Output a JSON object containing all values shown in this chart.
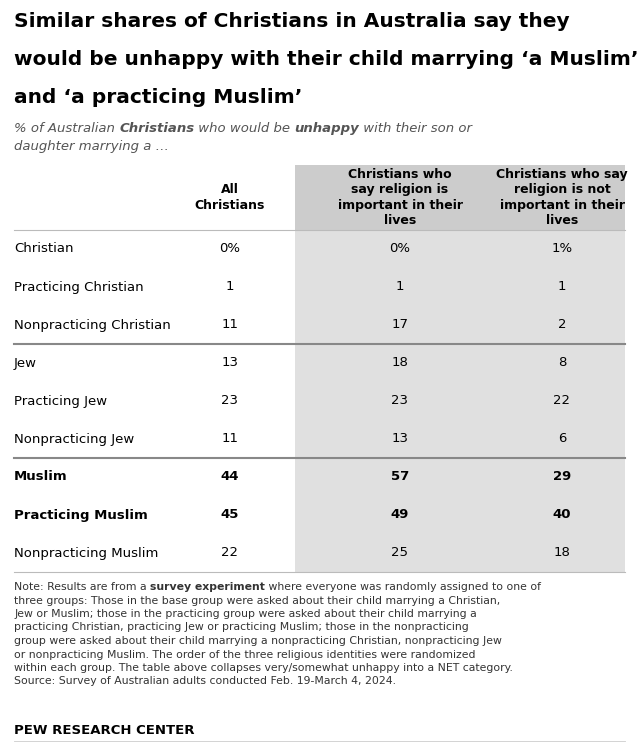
{
  "title_line1": "Similar shares of Christians in Australia say they",
  "title_line2": "would be unhappy with their child marrying ‘a Muslim’",
  "title_line3": "and ‘a practicing Muslim’",
  "col_headers": [
    "All\nChristians",
    "Christians who\nsay religion is\nimportant in their\nlives",
    "Christians who say\nreligion is not\nimportant in their\nlives"
  ],
  "rows": [
    {
      "label": "Christian",
      "val1": "0%",
      "val2": "0%",
      "val3": "1%",
      "group": 0,
      "bold": false
    },
    {
      "label": "Practicing Christian",
      "val1": "1",
      "val2": "1",
      "val3": "1",
      "group": 0,
      "bold": false
    },
    {
      "label": "Nonpracticing Christian",
      "val1": "11",
      "val2": "17",
      "val3": "2",
      "group": 0,
      "bold": false
    },
    {
      "label": "Jew",
      "val1": "13",
      "val2": "18",
      "val3": "8",
      "group": 1,
      "bold": false
    },
    {
      "label": "Practicing Jew",
      "val1": "23",
      "val2": "23",
      "val3": "22",
      "group": 1,
      "bold": false
    },
    {
      "label": "Nonpracticing Jew",
      "val1": "11",
      "val2": "13",
      "val3": "6",
      "group": 1,
      "bold": false
    },
    {
      "label": "Muslim",
      "val1": "44",
      "val2": "57",
      "val3": "29",
      "group": 2,
      "bold": true
    },
    {
      "label": "Practicing Muslim",
      "val1": "45",
      "val2": "49",
      "val3": "40",
      "group": 2,
      "bold": true
    },
    {
      "label": "Nonpracticing Muslim",
      "val1": "22",
      "val2": "25",
      "val3": "18",
      "group": 2,
      "bold": false
    }
  ],
  "note_text": "Note: Results are from a survey experiment where everyone was randomly assigned to one of three groups: Those in the base group were asked about their child marrying a Christian, Jew or Muslim; those in the practicing group were asked about their child marrying a practicing Christian, practicing Jew or practicing Muslim; those in the nonpracticing group were asked about their child marrying a nonpracticing Christian, nonpracticing Jew or nonpracticing Muslim. The order of the three religious identities were randomized within each group. The table above collapses very/somewhat unhappy into a NET category. Source: Survey of Australian adults conducted Feb. 19-March 4, 2024.",
  "footer": "PEW RESEARCH CENTER",
  "bg_color": "#ffffff",
  "shaded_col_color": "#e0e0e0",
  "header_shaded_color": "#cccccc",
  "divider_color_heavy": "#888888",
  "divider_color_light": "#bbbbbb"
}
